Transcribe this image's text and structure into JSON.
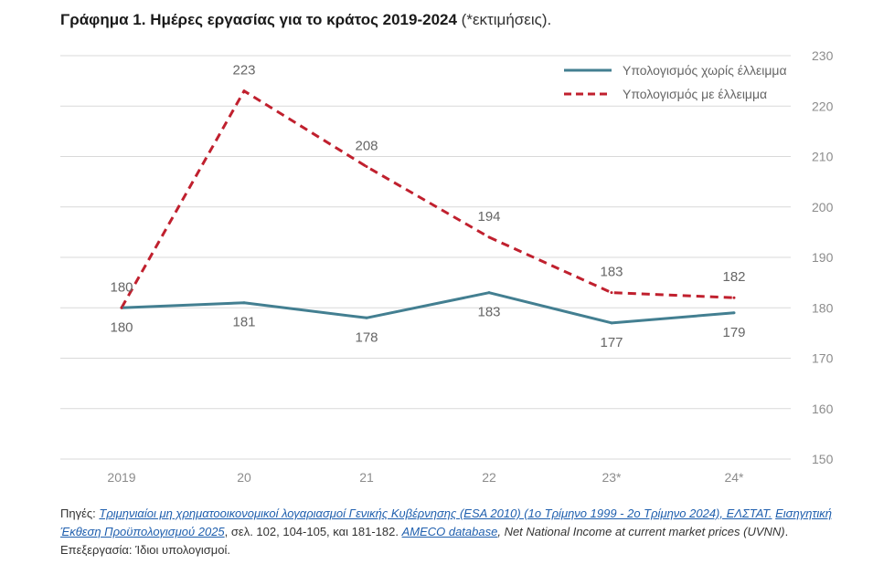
{
  "title": {
    "bold": "Γράφημα 1. Ημέρες εργασίας για το κράτος 2019-2024",
    "light": " (*εκτιμήσεις)."
  },
  "colors": {
    "series_solid": "#437f91",
    "series_dashed": "#c0202e",
    "grid": "#d9d9d9",
    "tick_text": "#8c8c8c",
    "label_text": "#666666"
  },
  "chart_data": {
    "type": "line",
    "categories": [
      "2019",
      "20",
      "21",
      "22",
      "23*",
      "24*"
    ],
    "series": [
      {
        "name": "Υπολογισμός χωρίς έλλειμμα",
        "style": "solid",
        "values": [
          180,
          181,
          178,
          183,
          177,
          179
        ],
        "labels": [
          "180",
          "181",
          "178",
          "183",
          "177",
          "179"
        ]
      },
      {
        "name": "Υπολογισμός με έλλειμμα",
        "style": "dashed",
        "values": [
          180,
          223,
          208,
          194,
          183,
          182
        ],
        "labels": [
          "180",
          "223",
          "208",
          "194",
          "183",
          "182"
        ]
      }
    ],
    "ylim": [
      150,
      230
    ],
    "yticks": [
      "150",
      "160",
      "170",
      "180",
      "190",
      "200",
      "210",
      "220",
      "230"
    ],
    "y_axis_side": "right",
    "grid": true,
    "legend_position": "top-right"
  },
  "sources": {
    "prefix": "Πηγές: ",
    "link1": "Τριμηνιαίοι μη χρηματοοικονομικοί λογαριασμοί Γενικής Κυβέρνησης (ESA 2010) (1ο Τρίμηνο 1999 - 2ο Τρίμηνο 2024), ΕΛΣΤΑΤ.",
    "link2": "Εισηγητική Έκθεση Προϋπολογισμού 2025",
    "text2": ", σελ.  102, 104-105, και 181-182. ",
    "link3": "AMECO database",
    "text3": ", Net National Income at current market prices (UVNN)",
    "text4": ". Επεξεργασία: Ίδιοι υπολογισμοί."
  }
}
